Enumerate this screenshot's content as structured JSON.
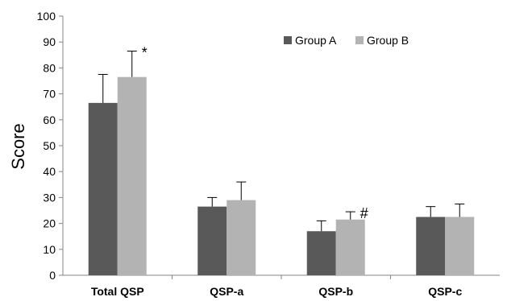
{
  "chart_data": {
    "type": "bar",
    "categories": [
      "Total QSP",
      "QSP-a",
      "QSP-b",
      "QSP-c"
    ],
    "series": [
      {
        "name": "Group A",
        "color": "#595959",
        "values": [
          66.5,
          26.5,
          17,
          22.5
        ],
        "errors": [
          11,
          3.5,
          4,
          4
        ]
      },
      {
        "name": "Group B",
        "color": "#b3b3b3",
        "values": [
          76.5,
          29,
          21.5,
          22.5
        ],
        "errors": [
          10,
          7,
          3,
          5
        ]
      }
    ],
    "annotations": [
      {
        "text": "*",
        "category": "Total QSP",
        "series": "Group B"
      },
      {
        "text": "#",
        "category": "QSP-b",
        "series": "Group B"
      }
    ],
    "title": "",
    "xlabel": "",
    "ylabel": "Score",
    "ylim": [
      0,
      100
    ],
    "yticks": [
      0,
      10,
      20,
      30,
      40,
      50,
      60,
      70,
      80,
      90,
      100
    ],
    "grid": false,
    "legend_position": "top-right"
  }
}
